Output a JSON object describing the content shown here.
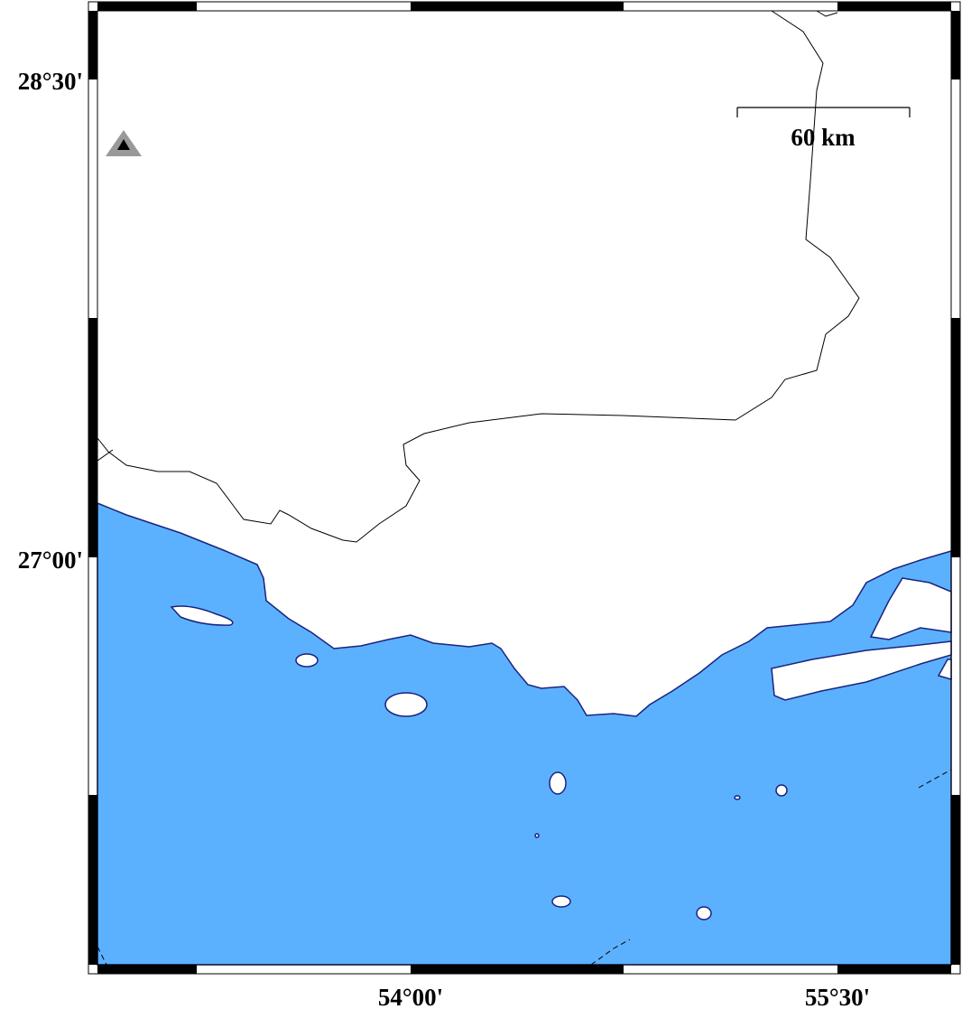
{
  "axes": {
    "y_labels": [
      "28°30'",
      "27°00'"
    ],
    "x_labels": [
      "54°00'",
      "55°30'"
    ]
  },
  "scale_bar": {
    "label": "60 km"
  }
}
